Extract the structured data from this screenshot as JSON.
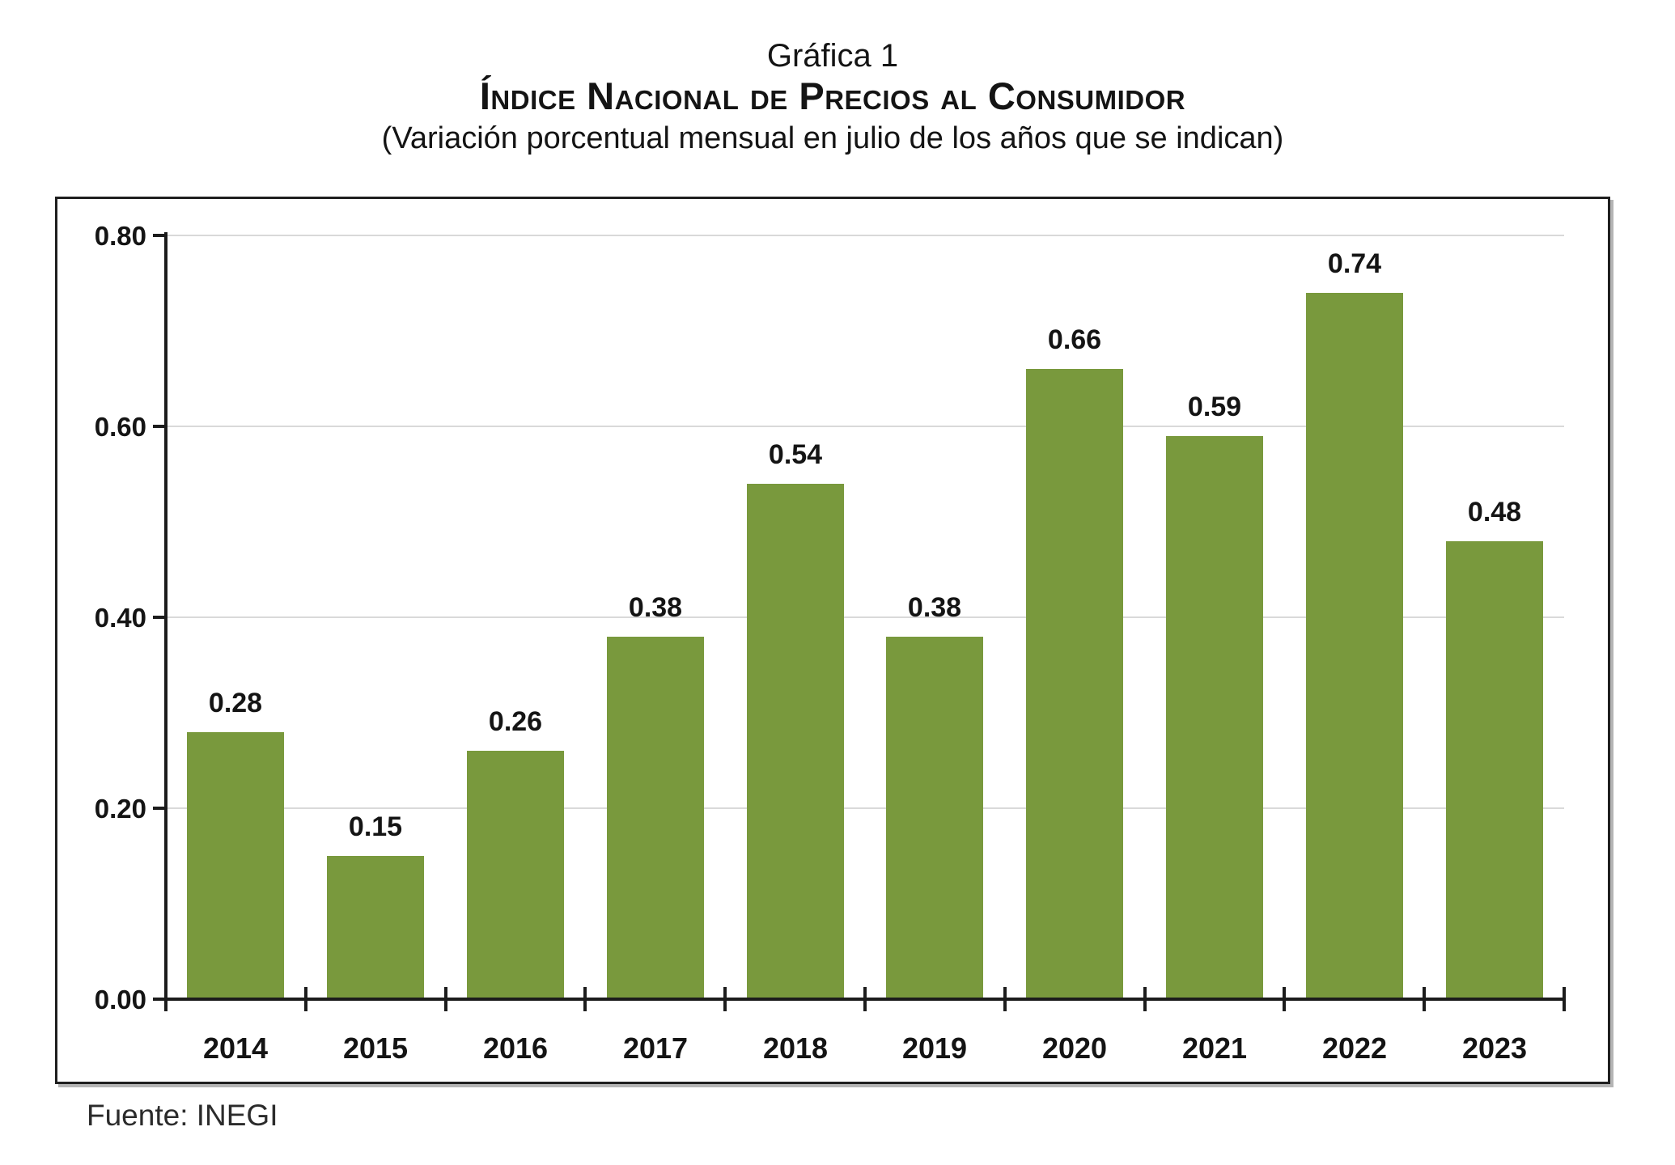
{
  "header": {
    "figure_label": "Gráfica 1",
    "main_title": "Índice Nacional de Precios al Consumidor",
    "subtitle": "(Variación porcentual mensual en julio de los años que se indican)"
  },
  "chart_data": {
    "type": "bar",
    "title": "Gráfica 1 — Índice Nacional de Precios al Consumidor",
    "subtitle": "(Variación porcentual mensual en julio de los años que se indican)",
    "categories": [
      "2014",
      "2015",
      "2016",
      "2017",
      "2018",
      "2019",
      "2020",
      "2021",
      "2022",
      "2023"
    ],
    "values": [
      0.28,
      0.15,
      0.26,
      0.38,
      0.54,
      0.38,
      0.66,
      0.59,
      0.74,
      0.48
    ],
    "value_labels": [
      "0.28",
      "0.15",
      "0.26",
      "0.38",
      "0.54",
      "0.38",
      "0.66",
      "0.59",
      "0.74",
      "0.48"
    ],
    "xlabel": "",
    "ylabel": "",
    "ylim": [
      0,
      0.8
    ],
    "y_ticks": [
      0.8,
      0.6,
      0.4,
      0.2,
      0.0
    ],
    "y_tick_labels": [
      "0.80",
      "0.60",
      "0.40",
      "0.20",
      "0.00"
    ],
    "grid": true,
    "legend": false,
    "bar_color": "#79993D",
    "grid_color": "#D9D9D9",
    "axis_color": "#1C1C1C",
    "label_color": "#141414"
  },
  "footer": {
    "source": "Fuente: INEGI"
  }
}
